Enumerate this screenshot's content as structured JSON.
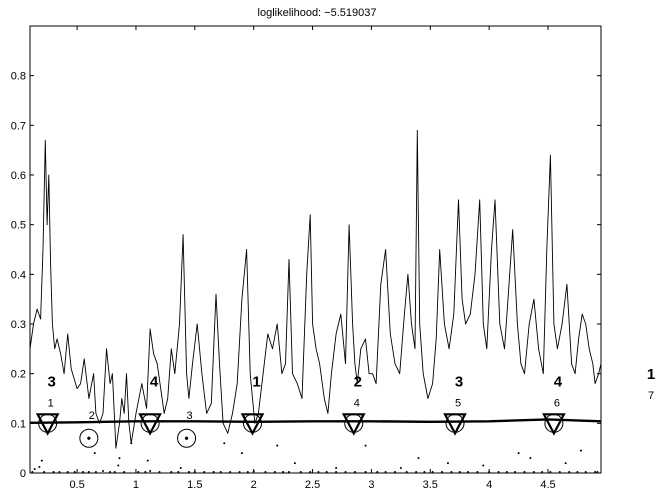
{
  "chart_data": {
    "type": "line",
    "title": "loglikelihood: −5.519037",
    "xlabel": "",
    "ylabel": "",
    "xlim": [
      0.1,
      4.95
    ],
    "ylim": [
      0,
      0.9
    ],
    "x_ticks": [
      {
        "v": 0.5,
        "label": "0.5"
      },
      {
        "v": 1,
        "label": "1"
      },
      {
        "v": 1.5,
        "label": "1.5"
      },
      {
        "v": 2,
        "label": "2"
      },
      {
        "v": 2.5,
        "label": "2.5"
      },
      {
        "v": 3,
        "label": "3"
      },
      {
        "v": 3.5,
        "label": "3.5"
      },
      {
        "v": 4,
        "label": "4"
      },
      {
        "v": 4.5,
        "label": "4.5"
      }
    ],
    "y_ticks": [
      {
        "v": 0,
        "label": "0"
      },
      {
        "v": 0.1,
        "label": "0.1"
      },
      {
        "v": 0.2,
        "label": "0.2"
      },
      {
        "v": 0.3,
        "label": "0.3"
      },
      {
        "v": 0.4,
        "label": "0.4"
      },
      {
        "v": 0.5,
        "label": "0.5"
      },
      {
        "v": 0.6,
        "label": "0.6"
      },
      {
        "v": 0.7,
        "label": "0.7"
      },
      {
        "v": 0.8,
        "label": "0.8"
      }
    ],
    "grid": false,
    "series": [
      {
        "x": [
          0.1,
          0.13,
          0.16,
          0.19,
          0.21,
          0.23,
          0.245,
          0.26,
          0.275,
          0.29,
          0.31,
          0.33,
          0.36,
          0.39,
          0.42,
          0.45,
          0.5,
          0.53,
          0.56,
          0.6,
          0.64,
          0.66,
          0.69,
          0.72,
          0.75,
          0.78,
          0.8,
          0.83,
          0.86,
          0.88,
          0.9,
          0.92,
          0.94,
          0.96,
          1.0,
          1.05,
          1.09,
          1.12,
          1.15,
          1.18,
          1.21,
          1.24,
          1.27,
          1.3,
          1.33,
          1.37,
          1.4,
          1.43,
          1.45,
          1.48,
          1.52,
          1.56,
          1.6,
          1.64,
          1.68,
          1.71,
          1.74,
          1.78,
          1.82,
          1.86,
          1.9,
          1.94,
          1.97,
          1.99,
          2.01,
          2.04,
          2.08,
          2.12,
          2.16,
          2.2,
          2.24,
          2.27,
          2.3,
          2.33,
          2.37,
          2.41,
          2.45,
          2.48,
          2.5,
          2.53,
          2.56,
          2.6,
          2.63,
          2.66,
          2.7,
          2.74,
          2.78,
          2.81,
          2.84,
          2.86,
          2.88,
          2.91,
          2.95,
          2.98,
          3.01,
          3.04,
          3.08,
          3.12,
          3.16,
          3.2,
          3.24,
          3.28,
          3.31,
          3.34,
          3.37,
          3.39,
          3.41,
          3.44,
          3.48,
          3.52,
          3.55,
          3.58,
          3.62,
          3.66,
          3.7,
          3.74,
          3.77,
          3.8,
          3.84,
          3.88,
          3.92,
          3.95,
          3.98,
          4.02,
          4.05,
          4.09,
          4.13,
          4.16,
          4.2,
          4.24,
          4.27,
          4.3,
          4.34,
          4.38,
          4.42,
          4.46,
          4.49,
          4.52,
          4.55,
          4.58,
          4.62,
          4.66,
          4.7,
          4.73,
          4.76,
          4.79,
          4.82,
          4.85,
          4.88,
          4.9,
          4.93,
          4.95
        ],
        "y": [
          0.25,
          0.3,
          0.33,
          0.31,
          0.45,
          0.67,
          0.5,
          0.6,
          0.42,
          0.3,
          0.25,
          0.27,
          0.24,
          0.2,
          0.28,
          0.21,
          0.17,
          0.18,
          0.23,
          0.15,
          0.2,
          0.12,
          0.1,
          0.12,
          0.25,
          0.18,
          0.2,
          0.05,
          0.1,
          0.15,
          0.12,
          0.2,
          0.1,
          0.06,
          0.12,
          0.18,
          0.13,
          0.29,
          0.24,
          0.22,
          0.17,
          0.12,
          0.15,
          0.25,
          0.2,
          0.3,
          0.48,
          0.2,
          0.15,
          0.22,
          0.3,
          0.2,
          0.12,
          0.14,
          0.36,
          0.22,
          0.1,
          0.08,
          0.12,
          0.18,
          0.35,
          0.45,
          0.2,
          0.15,
          0.1,
          0.12,
          0.2,
          0.28,
          0.25,
          0.3,
          0.2,
          0.22,
          0.43,
          0.2,
          0.18,
          0.15,
          0.4,
          0.52,
          0.3,
          0.25,
          0.22,
          0.15,
          0.12,
          0.2,
          0.28,
          0.32,
          0.22,
          0.5,
          0.3,
          0.22,
          0.18,
          0.25,
          0.27,
          0.2,
          0.2,
          0.18,
          0.38,
          0.45,
          0.28,
          0.22,
          0.2,
          0.32,
          0.4,
          0.3,
          0.25,
          0.69,
          0.3,
          0.2,
          0.15,
          0.18,
          0.27,
          0.45,
          0.3,
          0.25,
          0.32,
          0.55,
          0.35,
          0.3,
          0.32,
          0.4,
          0.55,
          0.3,
          0.25,
          0.45,
          0.55,
          0.3,
          0.25,
          0.35,
          0.49,
          0.3,
          0.22,
          0.2,
          0.3,
          0.35,
          0.25,
          0.2,
          0.45,
          0.64,
          0.3,
          0.25,
          0.3,
          0.38,
          0.22,
          0.2,
          0.27,
          0.32,
          0.3,
          0.25,
          0.22,
          0.18,
          0.2,
          0.22
        ]
      },
      {
        "x": [
          0.1,
          0.5,
          1.0,
          1.5,
          2.0,
          2.5,
          3.0,
          3.5,
          4.0,
          4.5,
          4.95
        ],
        "y": [
          0.101,
          0.102,
          0.104,
          0.104,
          0.103,
          0.104,
          0.104,
          0.103,
          0.104,
          0.108,
          0.104
        ]
      }
    ],
    "markers": [
      {
        "x": 0.25,
        "y": 0.1,
        "shape": "triangle",
        "big": "3",
        "small": "1"
      },
      {
        "x": 1.12,
        "y": 0.1,
        "shape": "triangle",
        "big": "4",
        "small": ""
      },
      {
        "x": 1.99,
        "y": 0.1,
        "shape": "triangle",
        "big": "1",
        "small": ""
      },
      {
        "x": 2.85,
        "y": 0.1,
        "shape": "triangle",
        "big": "2",
        "small": "4"
      },
      {
        "x": 3.71,
        "y": 0.1,
        "shape": "triangle",
        "big": "3",
        "small": "5"
      },
      {
        "x": 4.55,
        "y": 0.1,
        "shape": "triangle",
        "big": "4",
        "small": "6"
      },
      {
        "x": 0.6,
        "y": 0.07,
        "shape": "circle",
        "big": "",
        "small": "2"
      },
      {
        "x": 1.43,
        "y": 0.07,
        "shape": "circle",
        "big": "",
        "small": "3"
      }
    ],
    "outside_labels": {
      "big": "1",
      "small": "7"
    },
    "dots": {
      "x": [
        0.12,
        0.14,
        0.18,
        0.22,
        0.3,
        0.35,
        0.42,
        0.48,
        0.55,
        0.6,
        0.66,
        0.72,
        0.78,
        0.82,
        0.86,
        0.9,
        0.96,
        1.02,
        1.08,
        1.12,
        1.2,
        1.3,
        1.36,
        1.45,
        1.5,
        1.58,
        1.66,
        1.72,
        1.8,
        1.88,
        1.95,
        2.0,
        2.1,
        2.18,
        2.25,
        2.3,
        2.4,
        2.48,
        2.55,
        2.62,
        2.7,
        2.78,
        2.86,
        2.95,
        3.05,
        3.12,
        3.2,
        3.3,
        3.38,
        3.45,
        3.52,
        3.6,
        3.68,
        3.75,
        3.82,
        3.9,
        4.0,
        4.08,
        4.15,
        4.22,
        4.3,
        4.38,
        4.45,
        4.52,
        4.6,
        4.68,
        4.75,
        4.82,
        4.9,
        4.92,
        0.2,
        0.65,
        0.85,
        1.1,
        1.38,
        1.75,
        1.9,
        2.2,
        2.35,
        2.7,
        2.95,
        3.25,
        3.4,
        3.65,
        3.95,
        4.25,
        4.35,
        4.65,
        4.78
      ],
      "y": [
        0.002,
        0.008,
        0.012,
        0.002,
        0.002,
        0.002,
        0.002,
        0.002,
        0.002,
        0.002,
        0.002,
        0.004,
        0.002,
        0.002,
        0.03,
        0.002,
        0.06,
        0.002,
        0.002,
        0.004,
        0.002,
        0.002,
        0.002,
        0.002,
        0.002,
        0.002,
        0.002,
        0.002,
        0.002,
        0.002,
        0.002,
        0.003,
        0.002,
        0.002,
        0.002,
        0.002,
        0.002,
        0.002,
        0.002,
        0.002,
        0.002,
        0.002,
        0.002,
        0.002,
        0.002,
        0.002,
        0.002,
        0.002,
        0.002,
        0.002,
        0.002,
        0.002,
        0.002,
        0.002,
        0.002,
        0.002,
        0.002,
        0.002,
        0.002,
        0.002,
        0.002,
        0.002,
        0.002,
        0.002,
        0.002,
        0.002,
        0.002,
        0.002,
        0.002,
        0.002,
        0.025,
        0.04,
        0.015,
        0.025,
        0.01,
        0.06,
        0.04,
        0.055,
        0.02,
        0.01,
        0.055,
        0.01,
        0.03,
        0.02,
        0.015,
        0.04,
        0.03,
        0.02,
        0.045
      ]
    }
  }
}
